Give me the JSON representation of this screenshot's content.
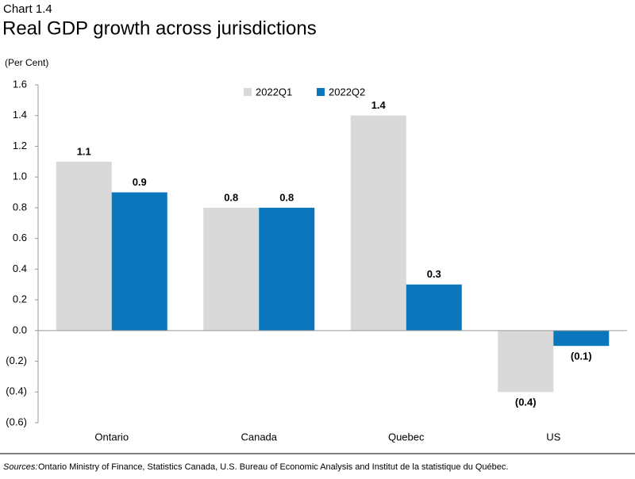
{
  "chart_data": {
    "type": "bar",
    "chart_label": "Chart 1.4",
    "title": "Real GDP growth across jurisdictions",
    "y_label": "(Per Cent)",
    "categories": [
      "Ontario",
      "Canada",
      "Quebec",
      "US"
    ],
    "series": [
      {
        "name": "2022Q1",
        "color": "#d9d9d9",
        "values": [
          1.1,
          0.8,
          1.4,
          -0.4
        ],
        "value_labels": [
          "1.1",
          "0.8",
          "1.4",
          "(0.4)"
        ]
      },
      {
        "name": "2022Q2",
        "color": "#0a77bd",
        "values": [
          0.9,
          0.8,
          0.3,
          -0.1
        ],
        "value_labels": [
          "0.9",
          "0.8",
          "0.3",
          "(0.1)"
        ]
      }
    ],
    "ylim": [
      -0.6,
      1.6
    ],
    "yticks": [
      {
        "value": -0.6,
        "label": "(0.6)"
      },
      {
        "value": -0.4,
        "label": "(0.4)"
      },
      {
        "value": -0.2,
        "label": "(0.2)"
      },
      {
        "value": 0,
        "label": "0.0"
      },
      0.2,
      0.4,
      0.6,
      0.8,
      {
        "value": 1,
        "label": "1.0"
      },
      1.2,
      1.4,
      1.6
    ],
    "grid": false,
    "legend": "top",
    "source_label": "Sources:",
    "source": "Ontario Ministry of Finance, Statistics Canada, U.S. Bureau of Economic Analysis and Institut de la statistique du Québec."
  }
}
